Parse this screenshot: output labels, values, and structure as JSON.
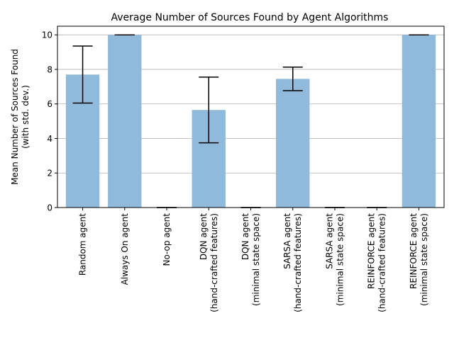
{
  "chart_data": {
    "type": "bar",
    "title": "Average Number of Sources Found by Agent Algorithms",
    "xlabel": "",
    "ylabel": [
      "Mean Number of Sources Found",
      "(with std. dev.)"
    ],
    "ylim": [
      0,
      10.5
    ],
    "yticks": [
      0,
      2,
      4,
      6,
      8,
      10
    ],
    "grid": "y",
    "bar_color": "#8fbadb",
    "categories": [
      [
        "Random agent"
      ],
      [
        "Always On agent"
      ],
      [
        "No-op agent"
      ],
      [
        "DQN agent",
        "(hand-crafted features)"
      ],
      [
        "DQN agent",
        "(minimal state space)"
      ],
      [
        "SARSA agent",
        "(hand-crafted features)"
      ],
      [
        "SARSA agent",
        "(minimal state space)"
      ],
      [
        "REINFORCE agent",
        "(hand-crafted features)"
      ],
      [
        "REINFORCE agent",
        "(minimal state space)"
      ]
    ],
    "values": [
      7.7,
      10.0,
      0.0,
      5.65,
      0.0,
      7.45,
      0.0,
      0.0,
      10.0
    ],
    "std": [
      1.65,
      0.0,
      0.0,
      1.9,
      0.0,
      0.68,
      0.0,
      0.0,
      0.0
    ]
  }
}
